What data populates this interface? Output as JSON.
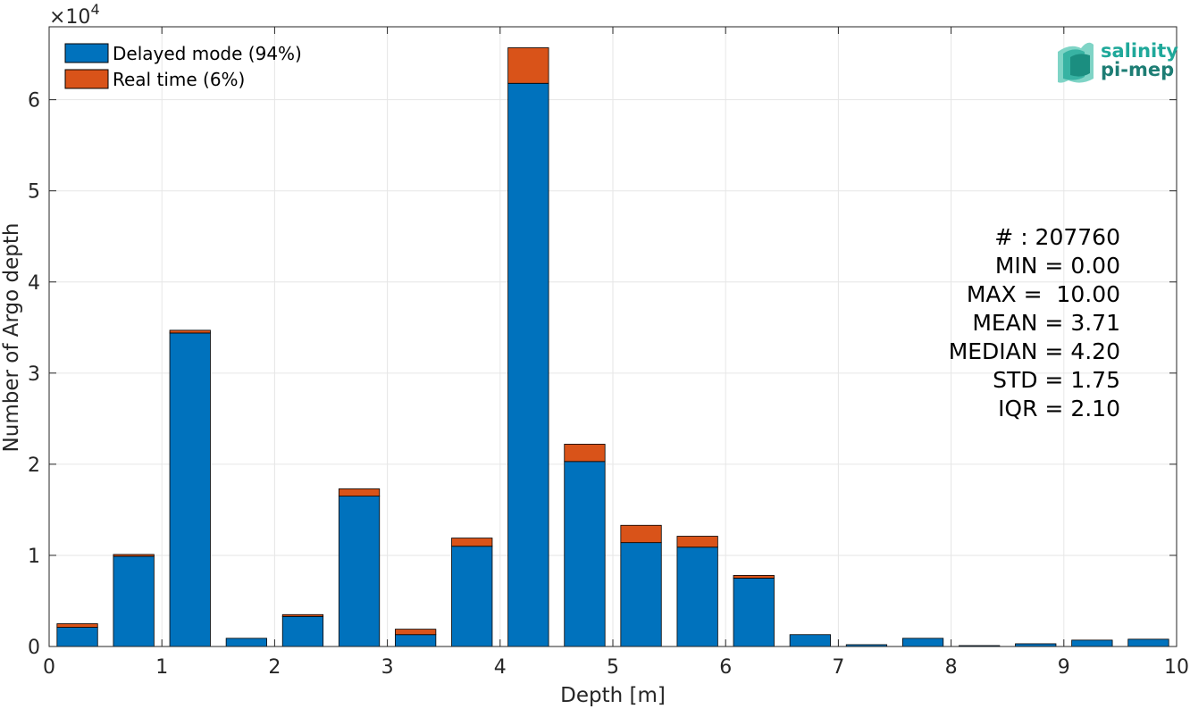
{
  "chart_data": {
    "type": "bar",
    "stacked": true,
    "xlabel": "Depth [m]",
    "ylabel": "Number of Argo depth",
    "y_multiplier": "×10",
    "y_multiplier_exp": "4",
    "xlim": [
      0,
      10
    ],
    "ylim": [
      0,
      68000
    ],
    "xticks": [
      0,
      1,
      2,
      3,
      4,
      5,
      6,
      7,
      8,
      9,
      10
    ],
    "yticks": [
      0,
      10000,
      20000,
      30000,
      40000,
      50000,
      60000
    ],
    "ytick_labels": [
      "0",
      "1",
      "2",
      "3",
      "4",
      "5",
      "6"
    ],
    "grid": true,
    "legend_position": "top-left",
    "bin_width": 0.5,
    "x": [
      0.25,
      0.75,
      1.25,
      1.75,
      2.25,
      2.75,
      3.25,
      3.75,
      4.25,
      4.75,
      5.25,
      5.75,
      6.25,
      6.75,
      7.25,
      7.75,
      8.25,
      8.75,
      9.25,
      9.75
    ],
    "series": [
      {
        "name": "Delayed mode (94%)",
        "color": "#0072BD",
        "values": [
          2100,
          9900,
          34400,
          900,
          3300,
          16500,
          1300,
          11000,
          61800,
          20300,
          11400,
          10900,
          7500,
          1300,
          200,
          900,
          100,
          300,
          700,
          800
        ]
      },
      {
        "name": "Real time (6%)",
        "color": "#D95319",
        "values": [
          400,
          200,
          300,
          0,
          200,
          800,
          600,
          900,
          3900,
          1900,
          1900,
          1200,
          300,
          0,
          0,
          0,
          0,
          0,
          0,
          0
        ]
      }
    ],
    "annotations": [
      "# : 207760",
      "MIN = 0.00",
      "MAX =  10.00",
      "MEAN = 3.71",
      "MEDIAN = 4.20",
      "STD = 1.75",
      "IQR = 2.10"
    ]
  },
  "logo": {
    "line1": "salinity",
    "line2": "pi-mep",
    "color1": "#1fa89a",
    "color2": "#1d7d74"
  }
}
